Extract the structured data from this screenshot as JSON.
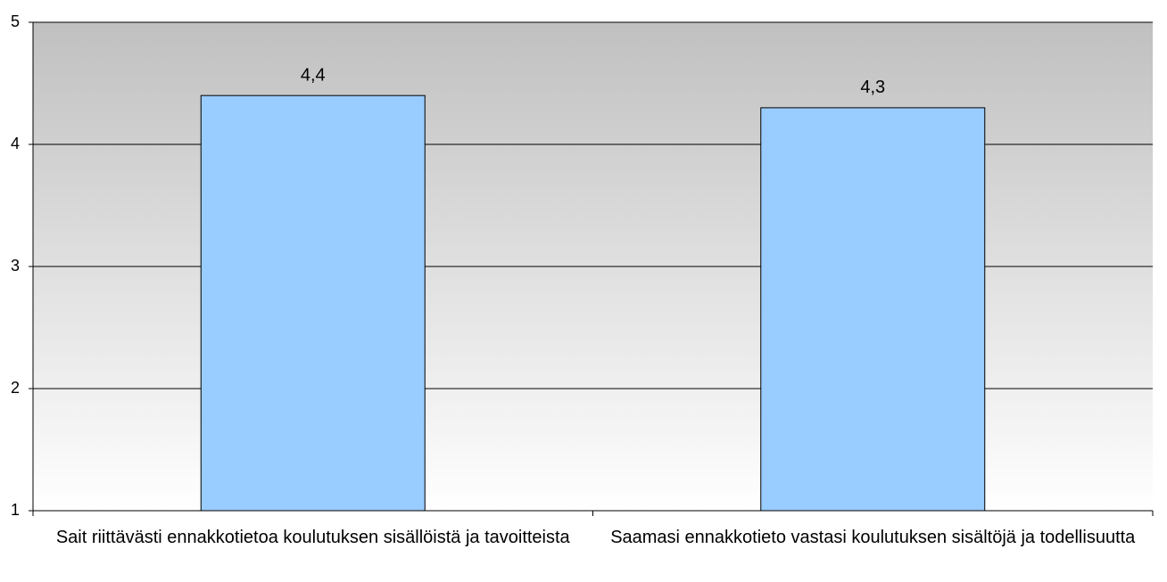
{
  "chart_data": {
    "type": "bar",
    "categories": [
      "Sait riittävästi ennakkotietoa koulutuksen sisällöistä ja tavoitteista",
      "Saamasi ennakkotieto vastasi koulutuksen sisältöjä ja todellisuutta"
    ],
    "values": [
      4.4,
      4.3
    ],
    "value_labels": [
      "4,4",
      "4,3"
    ],
    "color": "#99ccff",
    "ylim": [
      1,
      5
    ],
    "yticks": [
      1,
      2,
      3,
      4,
      5
    ],
    "grid": true
  }
}
